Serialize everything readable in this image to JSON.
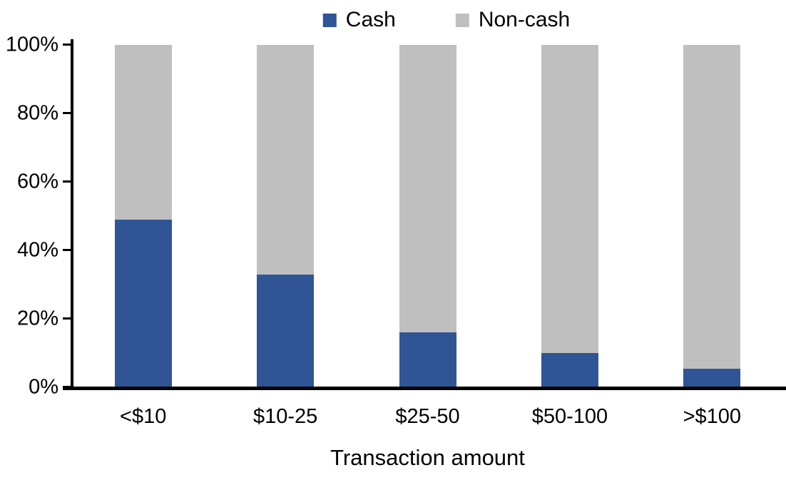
{
  "chart_data": {
    "type": "bar",
    "stacked": true,
    "percent_stacked": true,
    "title": "",
    "xlabel": "Transaction amount",
    "ylabel": "",
    "categories": [
      "<$10",
      "$10-25",
      "$25-50",
      "$50-100",
      ">$100"
    ],
    "series": [
      {
        "name": "Cash",
        "color": "#2F5597",
        "values": [
          49,
          33,
          16,
          10,
          5.5
        ]
      },
      {
        "name": "Non-cash",
        "color": "#BFBFBF",
        "values": [
          51,
          67,
          84,
          90,
          94.5
        ]
      }
    ],
    "ylim": [
      0,
      100
    ],
    "ytick_interval": 20,
    "yticks": [
      "0%",
      "20%",
      "40%",
      "60%",
      "80%",
      "100%"
    ],
    "legend_position": "top",
    "grid": false,
    "axis_color": "#000000",
    "background_color": "#FFFFFF"
  }
}
